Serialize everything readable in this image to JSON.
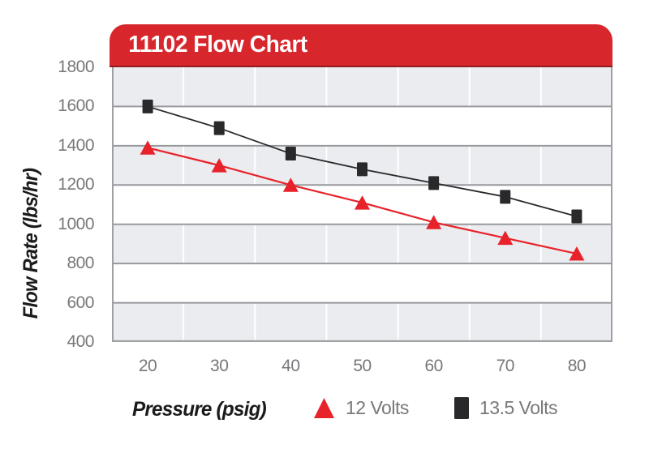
{
  "title": "11102 Flow Chart",
  "chart_data": {
    "type": "line",
    "title": "11102 Flow Chart",
    "xlabel": "Pressure (psig)",
    "ylabel": "Flow Rate (lbs/hr)",
    "x": [
      20,
      30,
      40,
      50,
      60,
      70,
      80
    ],
    "x_ticks": [
      20,
      30,
      40,
      50,
      60,
      70,
      80
    ],
    "y_ticks": [
      1800,
      1600,
      1400,
      1200,
      1000,
      800,
      600,
      400
    ],
    "ylim": [
      400,
      1800
    ],
    "grid": "horizontal gridlines at 200 steps, vertical gridlines at category boundaries, alternating gray/white bands",
    "legend_position": "bottom",
    "series": [
      {
        "name": "12 Volts",
        "marker": "triangle",
        "color": "#E8222A",
        "values": [
          1390,
          1300,
          1200,
          1110,
          1010,
          930,
          850
        ]
      },
      {
        "name": "13.5 Volts",
        "marker": "square",
        "color": "#29292B",
        "values": [
          1600,
          1490,
          1360,
          1280,
          1210,
          1140,
          1040
        ]
      }
    ]
  },
  "colors": {
    "banner_red": "#D8262D",
    "banner_edge": "#8E1C21",
    "series_red": "#E8222A",
    "series_black": "#29292B",
    "band_gray": "#EBECF0",
    "band_white": "#FFFFFF",
    "h_gridline": "#97999D",
    "v_gridline": "#FFFFFF",
    "plot_border": "#9EA0A4",
    "tick_text": "#77787B",
    "axis_title_text": "#1B1B1D",
    "title_text": "#FFFFFF"
  },
  "legend": {
    "items": [
      {
        "label": "12 Volts",
        "icon": "red-triangle-icon"
      },
      {
        "label": "13.5 Volts",
        "icon": "black-square-icon"
      }
    ]
  }
}
